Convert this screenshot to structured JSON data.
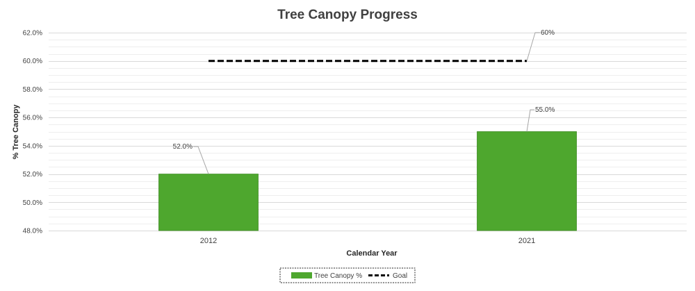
{
  "chart_data": {
    "type": "bar",
    "title": "Tree Canopy Progress",
    "xlabel": "Calendar Year",
    "ylabel": "% Tree Canopy",
    "categories": [
      "2012",
      "2021"
    ],
    "series": [
      {
        "name": "Tree Canopy %",
        "values": [
          52.0,
          55.0
        ],
        "labels": [
          "52.0%",
          "55.0%"
        ],
        "color": "#4ea72e"
      }
    ],
    "goal": {
      "name": "Goal",
      "value": 60.0,
      "label": "60%",
      "color": "#000000"
    },
    "ylim": [
      48.0,
      62.0
    ],
    "yticks": [
      48.0,
      50.0,
      52.0,
      54.0,
      56.0,
      58.0,
      60.0,
      62.0
    ],
    "ytick_labels": [
      "48.0%",
      "50.0%",
      "52.0%",
      "54.0%",
      "56.0%",
      "58.0%",
      "60.0%",
      "62.0%"
    ],
    "grid": true,
    "legend_position": "bottom"
  }
}
